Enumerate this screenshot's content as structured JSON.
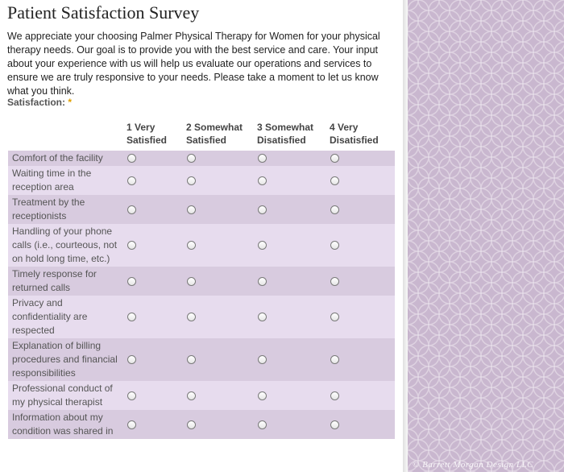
{
  "page": {
    "title": "Patient Satisfaction Survey",
    "intro": "We appreciate your choosing Palmer Physical Therapy for Women for your physical therapy needs. Our goal is to provide you with the best service and care. Your input about your experience with us will help us evaluate our operations and services to ensure we are truly responsive to your needs. Please take a moment to let us know what you think.",
    "credit": "© Barrett Morgan Design LLC"
  },
  "survey": {
    "field_label": "Satisfaction:",
    "required_mark": "*",
    "columns": [
      "1 Very Satisfied",
      "2 Somewhat Satisfied",
      "3 Somewhat Disatisfied",
      "4 Very Disatisfied"
    ],
    "rows": [
      "Comfort of the facility",
      "Waiting time in the reception area",
      "Treatment by the receptionists",
      "Handling of your phone calls (i.e., courteous, not on hold long time, etc.)",
      "Timely response for returned calls",
      "Privacy and confidentiality are respected",
      "Explanation of billing procedures and financial responsibilities",
      "Professional conduct of my physical therapist",
      "Information about my condition was shared in"
    ]
  },
  "colors": {
    "row_odd": "#d8cbdf",
    "row_even": "#e7dcee",
    "side_pattern": "#c9b7cf",
    "required": "#e0a000"
  }
}
